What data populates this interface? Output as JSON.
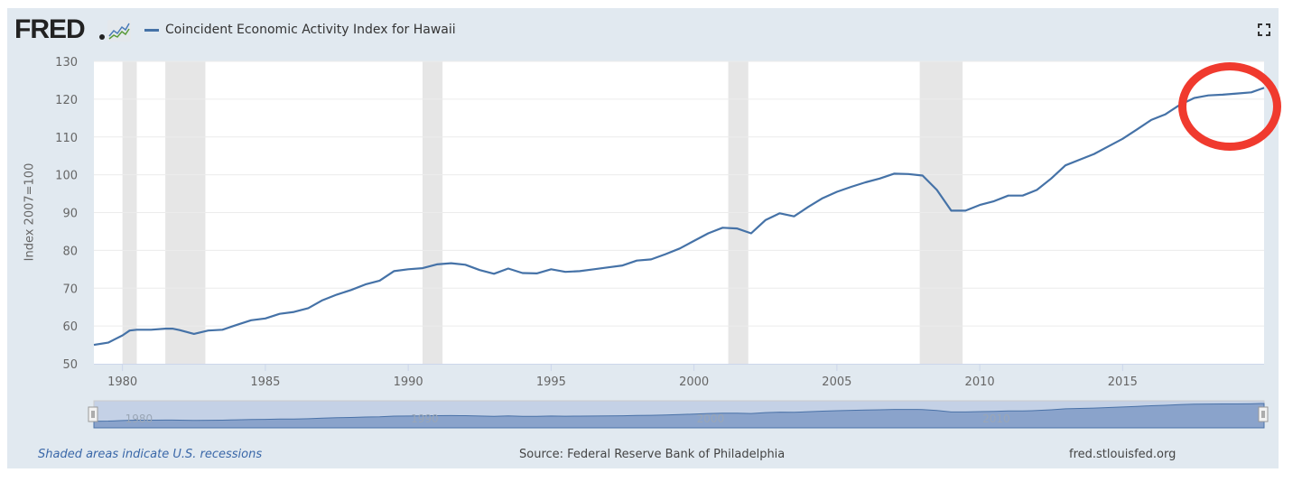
{
  "header": {
    "logo_text": "FRED",
    "legend_label": "Coincident Economic Activity Index for Hawaii",
    "fullscreen_icon": "fullscreen-icon"
  },
  "footer": {
    "recession_note": "Shaded areas indicate U.S. recessions",
    "source": "Source: Federal Reserve Bank of Philadelphia",
    "site": "fred.stlouisfed.org"
  },
  "colors": {
    "series": "#4572a7",
    "recession": "#e6e6e6",
    "annotation": "#f03a2e",
    "frame": "#e1e9f0"
  },
  "navigator": {
    "labels": [
      "1980",
      "1990",
      "2000",
      "2010"
    ]
  },
  "chart_data": {
    "type": "line",
    "title": "Coincident Economic Activity Index for Hawaii",
    "xlabel": "",
    "ylabel": "Index 2007=100",
    "xlim": [
      1979.0,
      2019.95
    ],
    "ylim": [
      50,
      130
    ],
    "grid": true,
    "legend": "top-left",
    "yticks": [
      "50",
      "60",
      "70",
      "80",
      "90",
      "100",
      "110",
      "120",
      "130"
    ],
    "xticks": [
      "1980",
      "1985",
      "1990",
      "1995",
      "2000",
      "2005",
      "2010",
      "2015"
    ],
    "recessions": [
      [
        1980.0,
        1980.5
      ],
      [
        1981.5,
        1982.9
      ],
      [
        1990.5,
        1991.2
      ],
      [
        2001.2,
        2001.9
      ],
      [
        2007.9,
        2009.4
      ]
    ],
    "series": [
      {
        "name": "Coincident Economic Activity Index for Hawaii",
        "x": [
          1979.0,
          1979.5,
          1980.0,
          1980.25,
          1980.5,
          1981.0,
          1981.5,
          1981.75,
          1982.0,
          1982.5,
          1983.0,
          1983.5,
          1984.0,
          1984.5,
          1985.0,
          1985.5,
          1986.0,
          1986.5,
          1987.0,
          1987.5,
          1988.0,
          1988.5,
          1989.0,
          1989.5,
          1990.0,
          1990.5,
          1991.0,
          1991.5,
          1992.0,
          1992.5,
          1993.0,
          1993.5,
          1994.0,
          1994.5,
          1995.0,
          1995.5,
          1996.0,
          1996.5,
          1997.0,
          1997.5,
          1998.0,
          1998.5,
          1999.0,
          1999.5,
          2000.0,
          2000.5,
          2001.0,
          2001.5,
          2002.0,
          2002.5,
          2003.0,
          2003.5,
          2004.0,
          2004.5,
          2005.0,
          2005.5,
          2006.0,
          2006.5,
          2007.0,
          2007.5,
          2008.0,
          2008.5,
          2009.0,
          2009.5,
          2010.0,
          2010.5,
          2011.0,
          2011.5,
          2012.0,
          2012.5,
          2013.0,
          2013.5,
          2014.0,
          2014.5,
          2015.0,
          2015.5,
          2016.0,
          2016.5,
          2017.0,
          2017.5,
          2018.0,
          2018.5,
          2019.0,
          2019.5,
          2019.95
        ],
        "values": [
          55.0,
          55.6,
          57.5,
          58.8,
          59.0,
          59.0,
          59.3,
          59.3,
          58.9,
          57.9,
          58.8,
          59.0,
          60.3,
          61.5,
          62.0,
          63.2,
          63.7,
          64.7,
          66.8,
          68.3,
          69.5,
          71.0,
          72.0,
          74.5,
          75.0,
          75.3,
          76.3,
          76.6,
          76.2,
          74.8,
          73.8,
          75.2,
          74.0,
          73.9,
          75.0,
          74.3,
          74.5,
          75.0,
          75.5,
          76.0,
          77.3,
          77.6,
          79.0,
          80.5,
          82.5,
          84.5,
          86.0,
          85.8,
          84.5,
          88.0,
          89.8,
          89.0,
          91.5,
          93.8,
          95.5,
          96.8,
          98.0,
          99.0,
          100.3,
          100.2,
          99.8,
          96.0,
          90.5,
          90.5,
          92.0,
          93.0,
          94.5,
          94.5,
          96.0,
          99.0,
          102.5,
          104.0,
          105.5,
          107.5,
          109.5,
          112.0,
          114.5,
          116.0,
          118.5,
          120.3,
          121.0,
          121.2,
          121.5,
          121.8,
          123.0
        ]
      }
    ]
  }
}
